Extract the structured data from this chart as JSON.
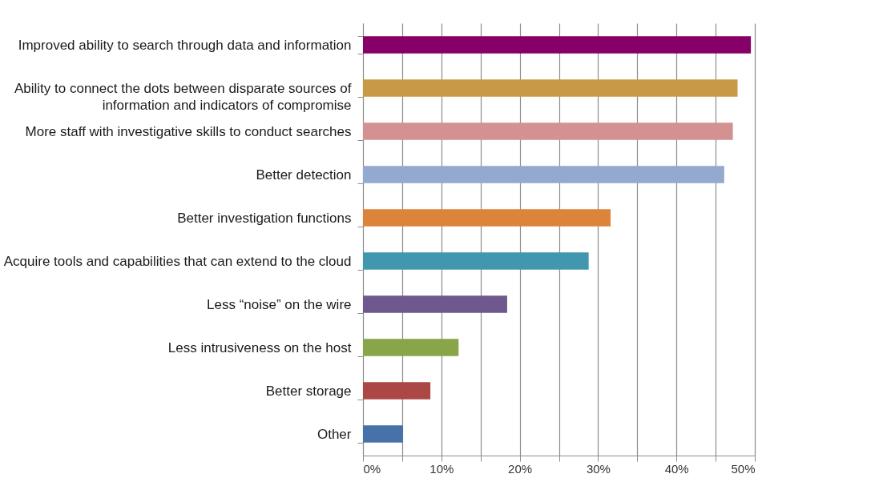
{
  "chart_data": {
    "type": "bar",
    "orientation": "horizontal",
    "categories": [
      "Improved ability to search through data and information",
      "Ability to connect the dots between disparate sources of information and indicators of compromise",
      "More staff with investigative skills to conduct searches",
      "Better detection",
      "Better investigation functions",
      "Acquire tools and capabilities that can extend to the cloud",
      "Less “noise” on the wire",
      "Less intrusiveness on the host",
      "Better storage",
      "Other"
    ],
    "values": [
      49.5,
      47.8,
      47.2,
      46.1,
      31.6,
      28.8,
      18.4,
      12.2,
      8.6,
      5.1
    ],
    "colors": [
      "#870067",
      "#c99a45",
      "#d49191",
      "#93a9cf",
      "#dd843b",
      "#4198ae",
      "#6f588e",
      "#88a54a",
      "#ab4744",
      "#4771a9"
    ],
    "xlim": [
      0,
      50
    ],
    "xticks": [
      {
        "value": 0,
        "label": "0%"
      },
      {
        "value": 5,
        "label": null
      },
      {
        "value": 10,
        "label": "10%"
      },
      {
        "value": 15,
        "label": null
      },
      {
        "value": 20,
        "label": "20%"
      },
      {
        "value": 25,
        "label": null
      },
      {
        "value": 30,
        "label": "30%"
      },
      {
        "value": 35,
        "label": null
      },
      {
        "value": 40,
        "label": "40%"
      },
      {
        "value": 45,
        "label": null
      },
      {
        "value": 50,
        "label": "50%"
      }
    ],
    "grid": "x"
  }
}
